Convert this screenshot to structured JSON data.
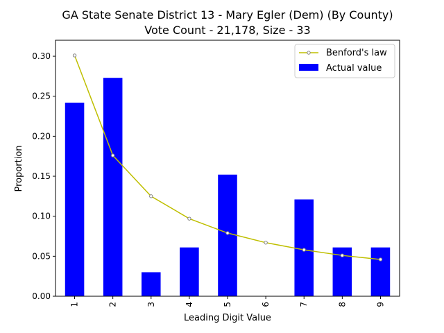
{
  "chart_data": {
    "type": "bar",
    "title_line1": "GA State Senate District 13 - Mary Egler (Dem) (By County)",
    "title_line2": "Vote Count - 21,178, Size - 33",
    "xlabel": "Leading Digit Value",
    "ylabel": "Proportion",
    "categories": [
      "1",
      "2",
      "3",
      "4",
      "5",
      "6",
      "7",
      "8",
      "9"
    ],
    "ylim": [
      0,
      0.32
    ],
    "yticks": [
      "0.00",
      "0.05",
      "0.10",
      "0.15",
      "0.20",
      "0.25",
      "0.30"
    ],
    "grid": false,
    "legend_position": "top-right",
    "series": [
      {
        "name": "Benford's law",
        "kind": "line",
        "color": "#bfbf00",
        "marker": "circle",
        "values": [
          0.301,
          0.176,
          0.125,
          0.097,
          0.079,
          0.067,
          0.058,
          0.051,
          0.046
        ]
      },
      {
        "name": "Actual value",
        "kind": "bar",
        "color": "#0000ff",
        "values": [
          0.242,
          0.273,
          0.03,
          0.061,
          0.152,
          0.0,
          0.121,
          0.061,
          0.061
        ]
      }
    ]
  }
}
